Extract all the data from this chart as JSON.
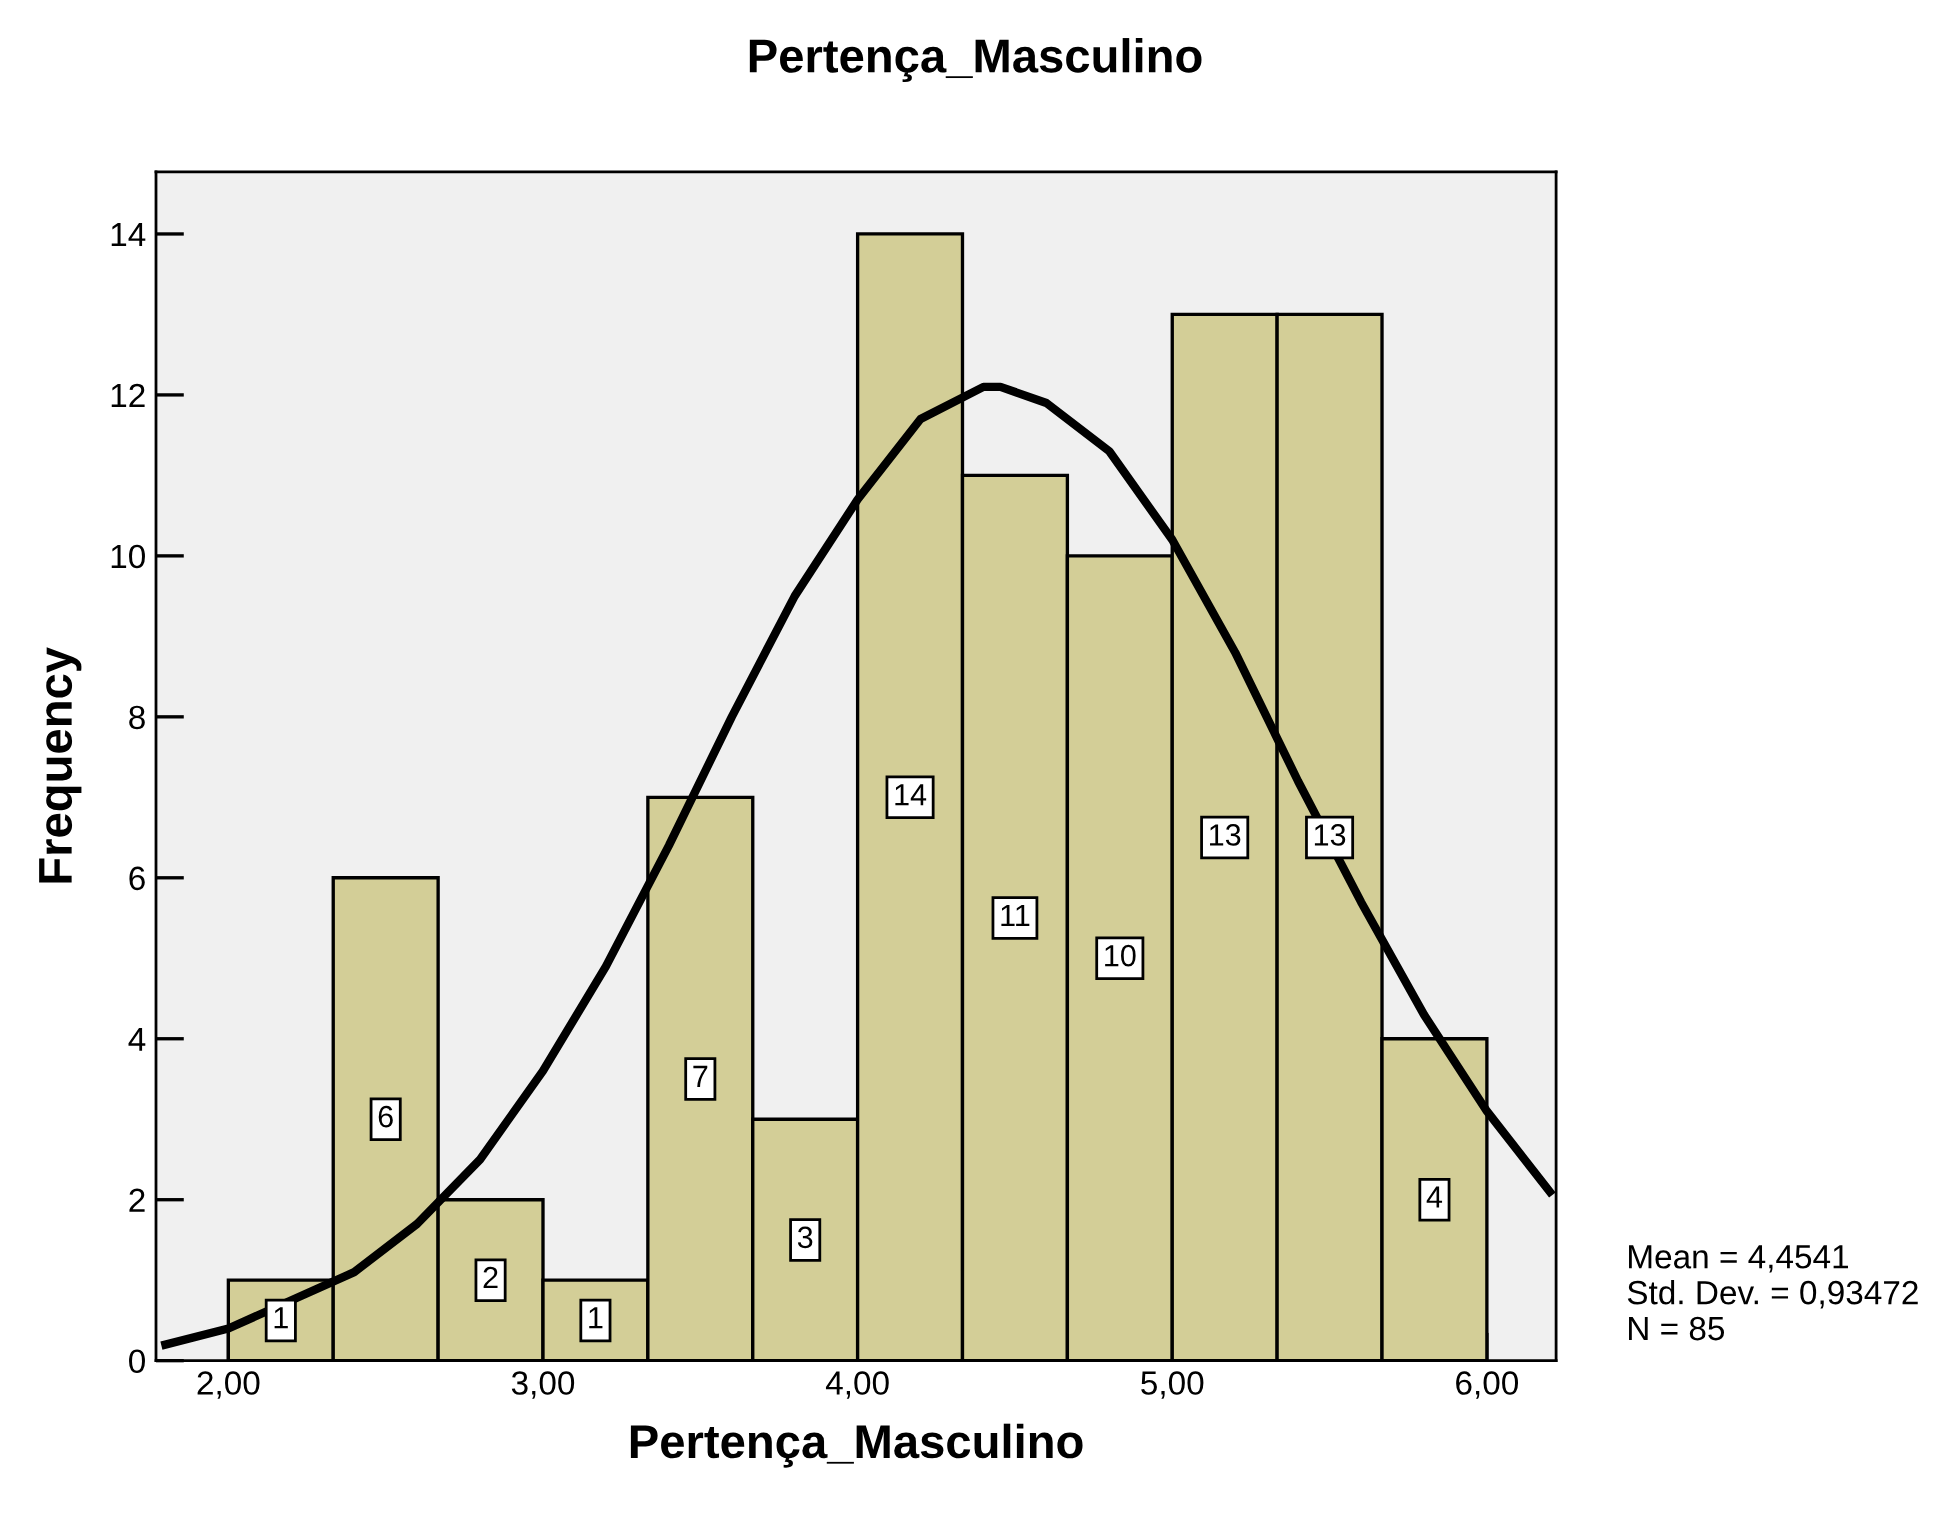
{
  "chart_data": {
    "type": "histogram",
    "title": "Pertença_Masculino",
    "xlabel": "Pertença_Masculino",
    "ylabel": "Frequency",
    "bins": [
      2.0,
      2.3333,
      2.6667,
      3.0,
      3.3333,
      3.6667,
      4.0,
      4.3333,
      4.6667,
      5.0,
      5.3333,
      5.6667,
      6.0
    ],
    "values": [
      1,
      6,
      2,
      1,
      7,
      3,
      14,
      11,
      10,
      13,
      13,
      4
    ],
    "color": "#d3ce97",
    "value_labels": [
      "1",
      "6",
      "2",
      "1",
      "7",
      "3",
      "14",
      "11",
      "10",
      "13",
      "13",
      "4"
    ],
    "series": [
      {
        "type": "line",
        "color": "#000000",
        "x": [
          1.8,
          2.0,
          2.4,
          2.6,
          2.8,
          3.0,
          3.2,
          3.4,
          3.6,
          3.8,
          4.0,
          4.2,
          4.4,
          4.4541,
          4.6,
          4.8,
          5.0,
          5.2,
          5.4,
          5.6,
          5.8,
          6.0,
          6.2
        ],
        "values": [
          0.2,
          0.4,
          1.1,
          1.7,
          2.5,
          3.6,
          4.9,
          6.4,
          8.0,
          9.5,
          10.7,
          11.7,
          12.1,
          12.1,
          11.9,
          11.3,
          10.2,
          8.8,
          7.2,
          5.7,
          4.3,
          3.1,
          2.1
        ]
      }
    ],
    "xlim": [
      1.77,
      6.22
    ],
    "ylim": [
      0,
      14.77
    ],
    "xticks": [
      {
        "value": 2,
        "label": "2,00"
      },
      {
        "value": 3,
        "label": "3,00"
      },
      {
        "value": 4,
        "label": "4,00"
      },
      {
        "value": 5,
        "label": "5,00"
      },
      {
        "value": 6,
        "label": "6,00"
      }
    ],
    "yticks": [
      0,
      2,
      4,
      6,
      8,
      10,
      12,
      14
    ],
    "grid": false,
    "legend": false,
    "annotations": [
      "Mean = 4,4541\nStd. Dev. = 0,93472\nN = 85"
    ]
  }
}
